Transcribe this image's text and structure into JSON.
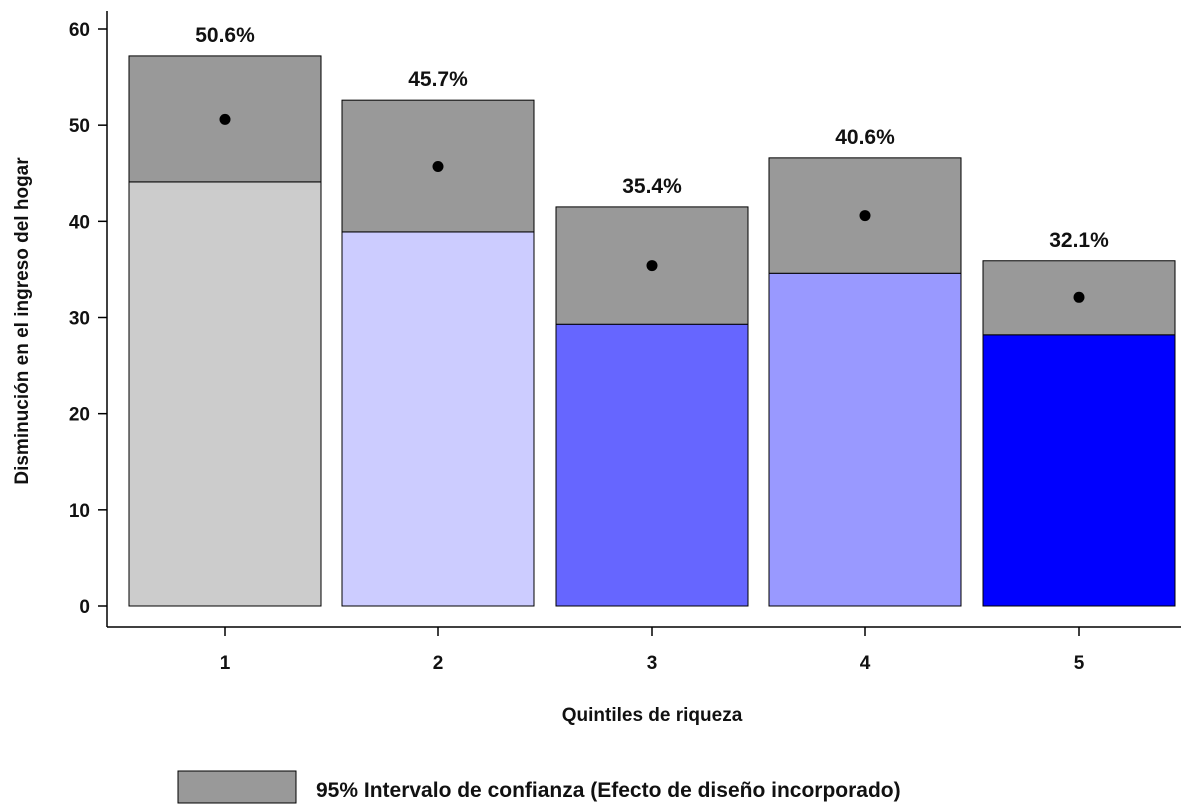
{
  "chart_data": {
    "type": "bar",
    "xlabel": "Quintiles de riqueza",
    "ylabel": "Disminución en el ingreso del hogar",
    "ylim": [
      0,
      60
    ],
    "yticks": [
      0,
      10,
      20,
      30,
      40,
      50,
      60
    ],
    "categories": [
      "1",
      "2",
      "3",
      "4",
      "5"
    ],
    "values": [
      50.6,
      45.7,
      35.4,
      40.6,
      32.1
    ],
    "value_labels": [
      "50.6%",
      "45.7%",
      "35.4%",
      "40.6%",
      "32.1%"
    ],
    "ci_lower": [
      44.1,
      38.9,
      29.3,
      34.6,
      28.2
    ],
    "ci_upper": [
      57.2,
      52.6,
      41.5,
      46.6,
      35.9
    ],
    "bar_colors": [
      "#cccccc",
      "#ccccff",
      "#6666ff",
      "#9999ff",
      "#0000ff"
    ],
    "ci_color": "#999999",
    "point_color": "#000000",
    "legend": {
      "position": "bottom",
      "entries": [
        "95% Intervalo de confianza (Efecto de diseño incorporado)"
      ]
    },
    "grid": false
  }
}
